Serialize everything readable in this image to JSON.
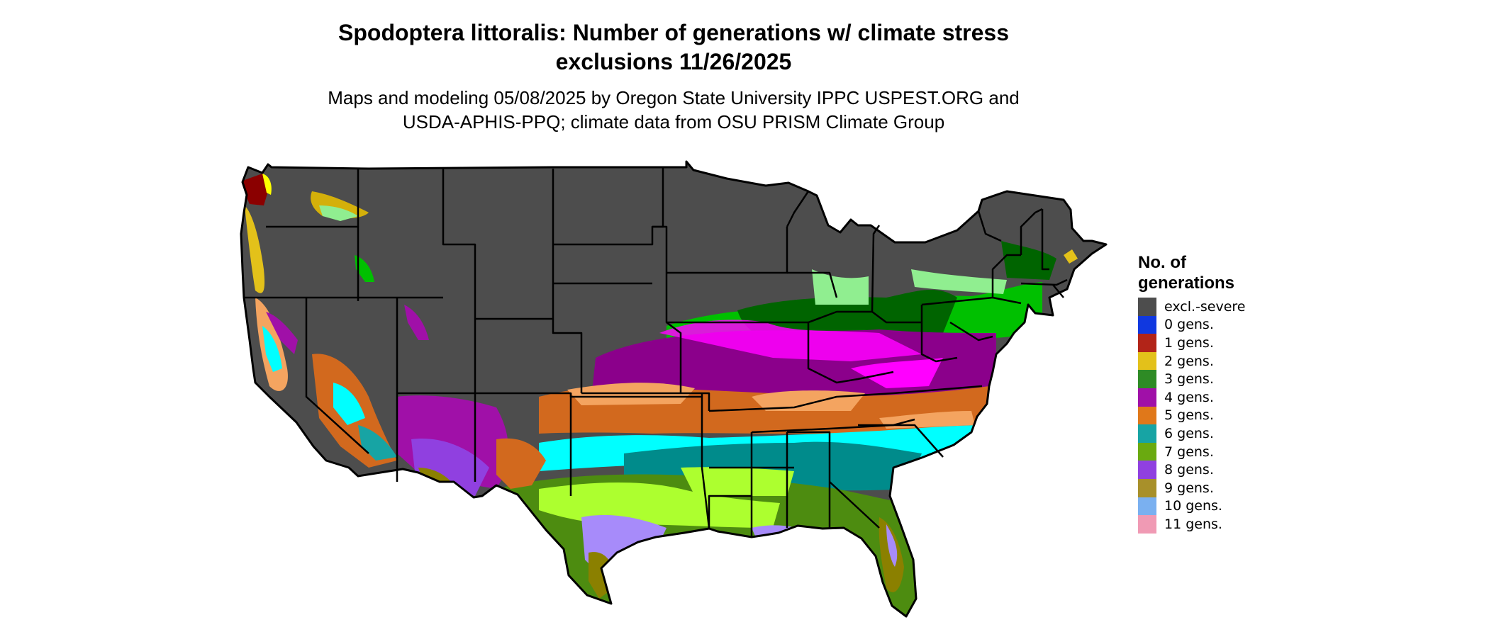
{
  "title_line1": "Spodoptera littoralis: Number of generations w/ climate stress",
  "title_line2": "exclusions 11/26/2025",
  "subtitle_line1": "Maps and modeling 05/08/2025 by Oregon State University IPPC USPEST.ORG and",
  "subtitle_line2": "USDA-APHIS-PPQ; climate data from OSU PRISM Climate Group",
  "legend": {
    "title_line1": "No. of",
    "title_line2": "generations",
    "items": [
      {
        "label": "excl.-severe",
        "color": "#4d4d4d"
      },
      {
        "label": "0 gens.",
        "color": "#1038e0"
      },
      {
        "label": "1 gens.",
        "color": "#b22418"
      },
      {
        "label": "2 gens.",
        "color": "#e3c11a"
      },
      {
        "label": "3 gens.",
        "color": "#2e8b25"
      },
      {
        "label": "4 gens.",
        "color": "#a010a8"
      },
      {
        "label": "5 gens.",
        "color": "#e0781a"
      },
      {
        "label": "6 gens.",
        "color": "#17a4a4"
      },
      {
        "label": "7 gens.",
        "color": "#6aaa10"
      },
      {
        "label": "8 gens.",
        "color": "#9040e0"
      },
      {
        "label": "9 gens.",
        "color": "#a8902a"
      },
      {
        "label": "10 gens.",
        "color": "#7ab0f0"
      },
      {
        "label": "11 gens.",
        "color": "#f09ab4"
      }
    ]
  },
  "map": {
    "region": "Contiguous United States",
    "highlight_colors": {
      "light_green": "#90ee90",
      "bright_green": "#00c000",
      "dark_green": "#006400",
      "magenta": "#ff00ff",
      "purple": "#8b008b",
      "sandy_orange": "#f4a460",
      "dark_orange": "#d2691e",
      "cyan": "#00ffff",
      "dark_cyan": "#008b8b",
      "lime": "#adff2f",
      "green": "#4d8c10",
      "lavender": "#a78bfa",
      "dark_khaki": "#8b8000",
      "dark_red": "#8b0000",
      "yellow": "#ffff00",
      "gold": "#d4b00a"
    }
  }
}
